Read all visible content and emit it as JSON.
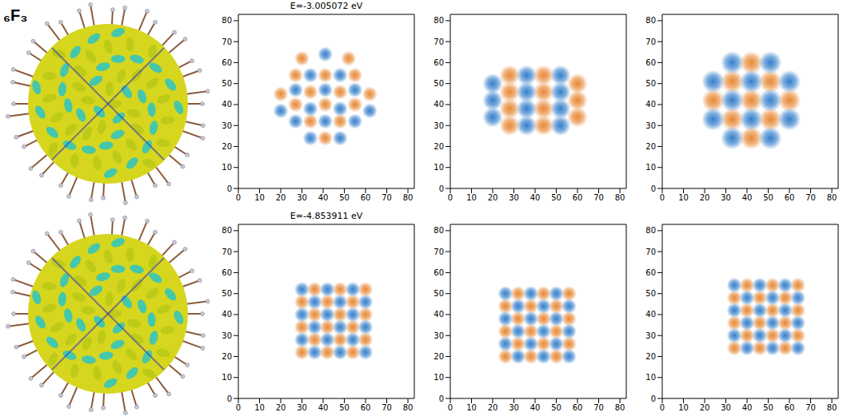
{
  "figure_label": "₆F₃",
  "chart_data": [
    {
      "type": "scatter",
      "title": "E=-3.005072 eV",
      "xlim": [
        0,
        83
      ],
      "ylim": [
        0,
        83
      ],
      "xticks": [
        0,
        10,
        20,
        30,
        40,
        50,
        60,
        70,
        80
      ],
      "yticks": [
        0,
        10,
        20,
        30,
        40,
        50,
        60,
        70,
        80
      ],
      "grid": false,
      "marker": "blob",
      "series": [
        {
          "color": "#e6822a",
          "x": [
            20,
            27,
            34,
            41,
            48,
            55,
            62,
            27,
            41,
            55,
            34,
            48,
            41,
            30,
            52
          ],
          "y": [
            45,
            40,
            46,
            40,
            46,
            40,
            45,
            54,
            54,
            54,
            32,
            32,
            24,
            62,
            62
          ]
        },
        {
          "color": "#2a78c8",
          "x": [
            20,
            27,
            34,
            41,
            48,
            55,
            62,
            27,
            41,
            55,
            34,
            48,
            41,
            34,
            48
          ],
          "y": [
            37,
            47,
            38,
            47,
            38,
            47,
            37,
            32,
            32,
            32,
            54,
            54,
            64,
            24,
            24
          ]
        }
      ]
    },
    {
      "type": "scatter",
      "xlim": [
        0,
        83
      ],
      "ylim": [
        0,
        83
      ],
      "xticks": [
        0,
        10,
        20,
        30,
        40,
        50,
        60,
        70,
        80
      ],
      "yticks": [
        0,
        10,
        20,
        30,
        40,
        50,
        60,
        70,
        80
      ],
      "grid": false,
      "marker": "blob",
      "series": [
        {
          "color": "#e6822a",
          "x": [
            28,
            28,
            28,
            28,
            44,
            44,
            44,
            44,
            60,
            60,
            60
          ],
          "y": [
            30,
            38,
            46,
            54,
            30,
            38,
            46,
            54,
            34,
            42,
            50
          ]
        },
        {
          "color": "#2a78c8",
          "x": [
            20,
            20,
            20,
            36,
            36,
            36,
            36,
            52,
            52,
            52,
            52
          ],
          "y": [
            34,
            42,
            50,
            30,
            38,
            46,
            54,
            30,
            38,
            46,
            54
          ]
        }
      ]
    },
    {
      "type": "scatter",
      "xlim": [
        0,
        83
      ],
      "ylim": [
        0,
        83
      ],
      "xticks": [
        0,
        10,
        20,
        30,
        40,
        50,
        60,
        70,
        80
      ],
      "yticks": [
        0,
        10,
        20,
        30,
        40,
        50,
        60,
        70,
        80
      ],
      "grid": false,
      "marker": "blob",
      "series": [
        {
          "color": "#e6822a",
          "x": [
            24,
            33,
            33,
            42,
            42,
            42,
            51,
            51,
            60
          ],
          "y": [
            42,
            33,
            51,
            24,
            42,
            60,
            33,
            51,
            42
          ]
        },
        {
          "color": "#2a78c8",
          "x": [
            24,
            24,
            33,
            33,
            33,
            42,
            42,
            51,
            51,
            51,
            60,
            60
          ],
          "y": [
            33,
            51,
            24,
            42,
            60,
            33,
            51,
            24,
            42,
            60,
            33,
            51
          ]
        }
      ]
    },
    {
      "type": "scatter",
      "title": "E=-4.853911 eV",
      "xlim": [
        0,
        83
      ],
      "ylim": [
        0,
        83
      ],
      "xticks": [
        0,
        10,
        20,
        30,
        40,
        50,
        60,
        70,
        80
      ],
      "yticks": [
        0,
        10,
        20,
        30,
        40,
        50,
        60,
        70,
        80
      ],
      "grid": false,
      "marker": "blob",
      "series": [
        {
          "color": "#e6822a",
          "x": [
            30,
            30,
            30,
            36,
            36,
            36,
            42,
            42,
            42,
            48,
            48,
            48,
            54,
            54,
            54,
            60,
            60,
            60
          ],
          "y": [
            22,
            34,
            46,
            28,
            40,
            52,
            22,
            34,
            46,
            28,
            40,
            52,
            22,
            34,
            46,
            28,
            40,
            52
          ]
        },
        {
          "color": "#2a78c8",
          "x": [
            30,
            30,
            30,
            36,
            36,
            36,
            42,
            42,
            42,
            48,
            48,
            48,
            54,
            54,
            54,
            60,
            60,
            60
          ],
          "y": [
            28,
            40,
            52,
            22,
            34,
            46,
            28,
            40,
            52,
            22,
            34,
            46,
            28,
            40,
            52,
            22,
            34,
            46
          ]
        }
      ]
    },
    {
      "type": "scatter",
      "xlim": [
        0,
        83
      ],
      "ylim": [
        0,
        83
      ],
      "xticks": [
        0,
        10,
        20,
        30,
        40,
        50,
        60,
        70,
        80
      ],
      "yticks": [
        0,
        10,
        20,
        30,
        40,
        50,
        60,
        70,
        80
      ],
      "grid": false,
      "marker": "blob",
      "series": [
        {
          "color": "#e6822a",
          "x": [
            26,
            26,
            26,
            32,
            32,
            32,
            38,
            38,
            38,
            44,
            44,
            44,
            50,
            50,
            50,
            56,
            56,
            56
          ],
          "y": [
            20,
            32,
            44,
            26,
            38,
            50,
            20,
            32,
            44,
            26,
            38,
            50,
            20,
            32,
            44,
            26,
            38,
            50
          ]
        },
        {
          "color": "#2a78c8",
          "x": [
            26,
            26,
            26,
            32,
            32,
            32,
            38,
            38,
            38,
            44,
            44,
            44,
            50,
            50,
            50,
            56,
            56,
            56
          ],
          "y": [
            26,
            38,
            50,
            20,
            32,
            44,
            26,
            38,
            50,
            20,
            32,
            44,
            26,
            38,
            50,
            20,
            32,
            44
          ]
        }
      ]
    },
    {
      "type": "scatter",
      "xlim": [
        0,
        83
      ],
      "ylim": [
        0,
        83
      ],
      "xticks": [
        0,
        10,
        20,
        30,
        40,
        50,
        60,
        70,
        80
      ],
      "yticks": [
        0,
        10,
        20,
        30,
        40,
        50,
        60,
        70,
        80
      ],
      "grid": false,
      "marker": "blob",
      "series": [
        {
          "color": "#e6822a",
          "x": [
            34,
            34,
            34,
            40,
            40,
            40,
            46,
            46,
            46,
            52,
            52,
            52,
            58,
            58,
            58,
            64,
            64,
            64
          ],
          "y": [
            24,
            36,
            48,
            30,
            42,
            54,
            24,
            36,
            48,
            30,
            42,
            54,
            24,
            36,
            48,
            30,
            42,
            54
          ]
        },
        {
          "color": "#2a78c8",
          "x": [
            34,
            34,
            34,
            40,
            40,
            40,
            46,
            46,
            46,
            52,
            52,
            52,
            58,
            58,
            58,
            64,
            64,
            64
          ],
          "y": [
            30,
            42,
            54,
            24,
            36,
            48,
            30,
            42,
            54,
            24,
            36,
            48,
            30,
            42,
            54,
            24,
            36,
            48
          ]
        }
      ]
    }
  ]
}
